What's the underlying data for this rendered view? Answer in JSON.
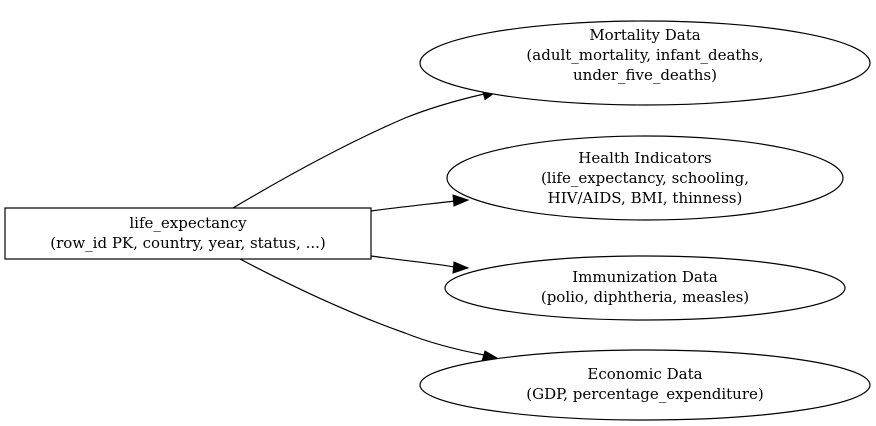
{
  "diagram": {
    "source": {
      "lines": [
        "life_expectancy",
        "(row_id PK, country, year, status, ...)"
      ]
    },
    "targets": [
      {
        "lines": [
          "Mortality Data",
          "(adult_mortality, infant_deaths,",
          "under_five_deaths)"
        ]
      },
      {
        "lines": [
          "Health Indicators",
          "(life_expectancy, schooling,",
          "HIV/AIDS, BMI, thinness)"
        ]
      },
      {
        "lines": [
          "Immunization Data",
          "(polio, diphtheria, measles)"
        ]
      },
      {
        "lines": [
          "Economic Data",
          "(GDP, percentage_expenditure)"
        ]
      }
    ]
  }
}
